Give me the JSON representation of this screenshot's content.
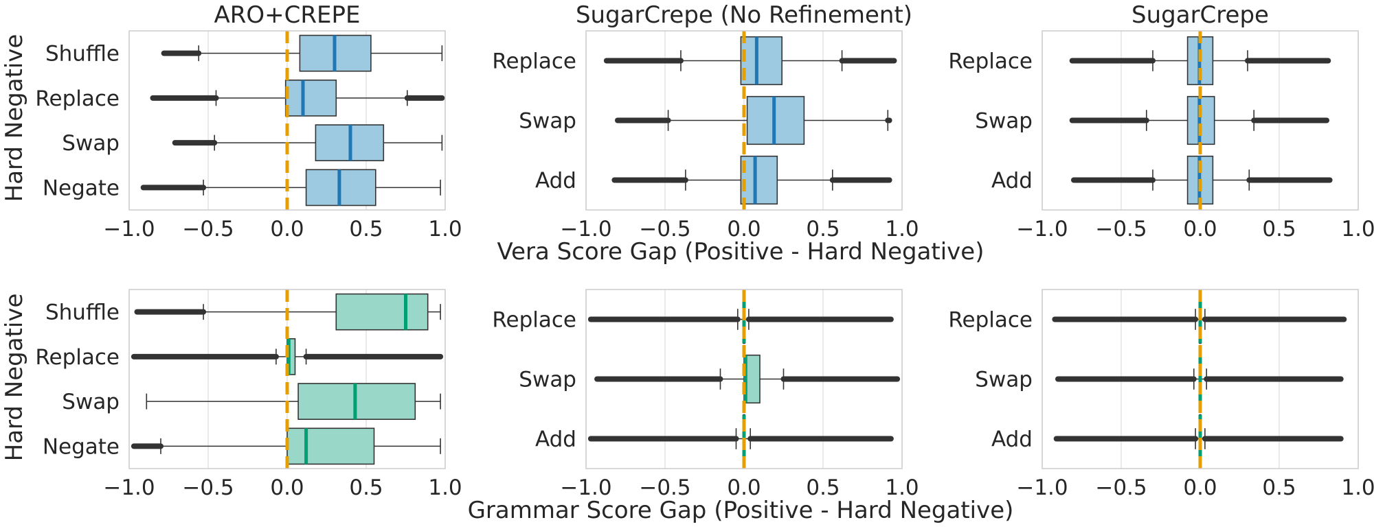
{
  "figure": {
    "row_ylabel": "Hard Negative",
    "row_xlabels": [
      "Vera Score Gap (Positive - Hard Negative)",
      "Grammar Score Gap (Positive - Hard Negative)"
    ],
    "colors": {
      "vera_box": "#9ecae1",
      "vera_median": "#1f77b4",
      "grammar_box": "#99d8c9",
      "grammar_median": "#009e73",
      "zero_line": "#e69f00",
      "grid": "#dddddd",
      "frame": "#cccccc",
      "whisker": "#333333"
    }
  },
  "chart_data": [
    {
      "type": "box",
      "panel": "vera-aro-crepe",
      "row": 0,
      "col": 0,
      "title": "ARO+CREPE",
      "xlim": [
        -1.0,
        1.0
      ],
      "xticks": [
        "−1.0",
        "−0.5",
        "0.0",
        "0.5",
        "1.0"
      ],
      "zero_line": 0.0,
      "grid": true,
      "categories": [
        "Shuffle",
        "Replace",
        "Swap",
        "Negate"
      ],
      "boxes": [
        {
          "q1": 0.08,
          "median": 0.3,
          "q3": 0.53,
          "whislo": -0.56,
          "whishi": 0.98,
          "out_lo": [
            -0.78,
            -0.56
          ],
          "out_hi": []
        },
        {
          "q1": -0.01,
          "median": 0.1,
          "q3": 0.31,
          "whislo": -0.45,
          "whishi": 0.76,
          "out_lo": [
            -0.85,
            -0.45
          ],
          "out_hi": [
            0.76,
            0.98
          ]
        },
        {
          "q1": 0.18,
          "median": 0.4,
          "q3": 0.61,
          "whislo": -0.46,
          "whishi": 0.98,
          "out_lo": [
            -0.71,
            -0.46
          ],
          "out_hi": []
        },
        {
          "q1": 0.12,
          "median": 0.33,
          "q3": 0.56,
          "whislo": -0.53,
          "whishi": 0.97,
          "out_lo": [
            -0.91,
            -0.53
          ],
          "out_hi": []
        }
      ]
    },
    {
      "type": "box",
      "panel": "vera-sugarcrepe-norefine",
      "row": 0,
      "col": 1,
      "title": "SugarCrepe (No Refinement)",
      "xlim": [
        -1.0,
        1.0
      ],
      "xticks": [
        "−1.0",
        "−0.5",
        "0.0",
        "0.5",
        "1.0"
      ],
      "zero_line": 0.0,
      "grid": true,
      "categories": [
        "Replace",
        "Swap",
        "Add"
      ],
      "boxes": [
        {
          "q1": -0.02,
          "median": 0.08,
          "q3": 0.24,
          "whislo": -0.4,
          "whishi": 0.62,
          "out_lo": [
            -0.87,
            -0.4
          ],
          "out_hi": [
            0.62,
            0.95
          ]
        },
        {
          "q1": 0.02,
          "median": 0.19,
          "q3": 0.38,
          "whislo": -0.48,
          "whishi": 0.91,
          "out_lo": [
            -0.8,
            -0.48
          ],
          "out_hi": [
            0.91,
            0.92
          ]
        },
        {
          "q1": -0.02,
          "median": 0.07,
          "q3": 0.21,
          "whislo": -0.37,
          "whishi": 0.56,
          "out_lo": [
            -0.82,
            -0.37
          ],
          "out_hi": [
            0.56,
            0.92
          ]
        }
      ]
    },
    {
      "type": "box",
      "panel": "vera-sugarcrepe",
      "row": 0,
      "col": 2,
      "title": "SugarCrepe",
      "xlim": [
        -1.0,
        1.0
      ],
      "xticks": [
        "−1.0",
        "−0.5",
        "0.0",
        "0.5",
        "1.0"
      ],
      "zero_line": 0.0,
      "grid": true,
      "categories": [
        "Replace",
        "Swap",
        "Add"
      ],
      "boxes": [
        {
          "q1": -0.08,
          "median": -0.005,
          "q3": 0.08,
          "whislo": -0.3,
          "whishi": 0.3,
          "out_lo": [
            -0.81,
            -0.3
          ],
          "out_hi": [
            0.3,
            0.81
          ]
        },
        {
          "q1": -0.08,
          "median": -0.005,
          "q3": 0.09,
          "whislo": -0.34,
          "whishi": 0.34,
          "out_lo": [
            -0.81,
            -0.34
          ],
          "out_hi": [
            0.34,
            0.8
          ]
        },
        {
          "q1": -0.08,
          "median": -0.005,
          "q3": 0.08,
          "whislo": -0.3,
          "whishi": 0.31,
          "out_lo": [
            -0.8,
            -0.3
          ],
          "out_hi": [
            0.31,
            0.82
          ]
        }
      ]
    },
    {
      "type": "box",
      "panel": "grammar-aro-crepe",
      "row": 1,
      "col": 0,
      "title": "",
      "xlim": [
        -1.0,
        1.0
      ],
      "xticks": [
        "−1.0",
        "−0.5",
        "0.0",
        "0.5",
        "1.0"
      ],
      "zero_line": 0.0,
      "grid": true,
      "categories": [
        "Shuffle",
        "Replace",
        "Swap",
        "Negate"
      ],
      "boxes": [
        {
          "q1": 0.31,
          "median": 0.75,
          "q3": 0.89,
          "whislo": -0.53,
          "whishi": 0.97,
          "out_lo": [
            -0.95,
            -0.53
          ],
          "out_hi": []
        },
        {
          "q1": 0.0,
          "median": 0.01,
          "q3": 0.05,
          "whislo": -0.07,
          "whishi": 0.12,
          "out_lo": [
            -0.97,
            -0.07
          ],
          "out_hi": [
            0.12,
            0.97
          ]
        },
        {
          "q1": 0.07,
          "median": 0.43,
          "q3": 0.81,
          "whislo": -0.89,
          "whishi": 0.97,
          "out_lo": [],
          "out_hi": []
        },
        {
          "q1": 0.0,
          "median": 0.12,
          "q3": 0.55,
          "whislo": -0.8,
          "whishi": 0.97,
          "out_lo": [
            -0.97,
            -0.8
          ],
          "out_hi": []
        }
      ]
    },
    {
      "type": "box",
      "panel": "grammar-sugarcrepe-norefine",
      "row": 1,
      "col": 1,
      "title": "",
      "xlim": [
        -1.0,
        1.0
      ],
      "xticks": [
        "−1.0",
        "−0.5",
        "0.0",
        "0.5",
        "1.0"
      ],
      "zero_line": 0.0,
      "grid": true,
      "categories": [
        "Replace",
        "Swap",
        "Add"
      ],
      "boxes": [
        {
          "q1": -0.005,
          "median": 0.0,
          "q3": 0.005,
          "whislo": -0.04,
          "whishi": 0.03,
          "out_lo": [
            -0.97,
            -0.04
          ],
          "out_hi": [
            0.03,
            0.93
          ]
        },
        {
          "q1": 0.0,
          "median": 0.01,
          "q3": 0.1,
          "whislo": -0.15,
          "whishi": 0.25,
          "out_lo": [
            -0.93,
            -0.15
          ],
          "out_hi": [
            0.25,
            0.97
          ]
        },
        {
          "q1": -0.005,
          "median": 0.0,
          "q3": 0.005,
          "whislo": -0.05,
          "whishi": 0.04,
          "out_lo": [
            -0.97,
            -0.05
          ],
          "out_hi": [
            0.04,
            0.93
          ]
        }
      ]
    },
    {
      "type": "box",
      "panel": "grammar-sugarcrepe",
      "row": 1,
      "col": 2,
      "title": "",
      "xlim": [
        -1.0,
        1.0
      ],
      "xticks": [
        "−1.0",
        "−0.5",
        "0.0",
        "0.5",
        "1.0"
      ],
      "zero_line": 0.0,
      "grid": true,
      "categories": [
        "Replace",
        "Swap",
        "Add"
      ],
      "boxes": [
        {
          "q1": -0.005,
          "median": 0.0,
          "q3": 0.005,
          "whislo": -0.03,
          "whishi": 0.03,
          "out_lo": [
            -0.92,
            -0.03
          ],
          "out_hi": [
            0.03,
            0.91
          ]
        },
        {
          "q1": -0.005,
          "median": 0.0,
          "q3": 0.005,
          "whislo": -0.04,
          "whishi": 0.04,
          "out_lo": [
            -0.9,
            -0.04
          ],
          "out_hi": [
            0.04,
            0.89
          ]
        },
        {
          "q1": -0.005,
          "median": 0.0,
          "q3": 0.005,
          "whislo": -0.03,
          "whishi": 0.03,
          "out_lo": [
            -0.91,
            -0.03
          ],
          "out_hi": [
            0.03,
            0.89
          ]
        }
      ]
    }
  ]
}
